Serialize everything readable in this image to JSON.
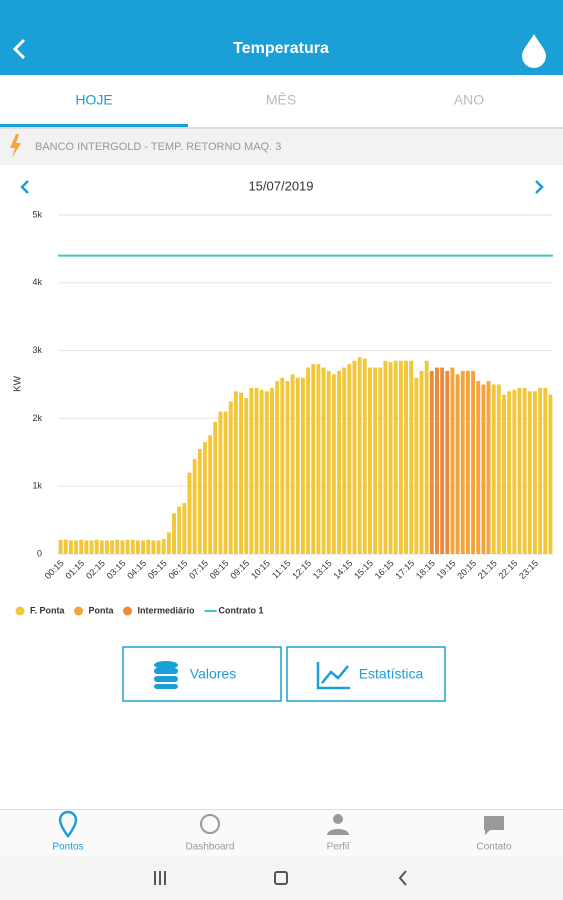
{
  "header": {
    "title": "Temperatura"
  },
  "tabs": [
    "HOJE",
    "MÊS",
    "ANO"
  ],
  "subtitle": "BANCO INTERGOLD - TEMP. RETORNO MAQ. 3",
  "date": "15/07/2019",
  "chart_data": {
    "type": "bar",
    "y_label": "KW",
    "ylim": [
      0,
      5000
    ],
    "yticks": [
      0,
      {
        "value": 1000,
        "label": "1k"
      },
      {
        "value": 2000,
        "label": "2k"
      },
      {
        "value": 3000,
        "label": "3k"
      },
      {
        "value": 4000,
        "label": "4k"
      },
      {
        "value": 5000,
        "label": "5k"
      }
    ],
    "grid": true,
    "categories": [
      "00:15",
      null,
      null,
      null,
      "01:15",
      null,
      null,
      null,
      "02:15",
      null,
      null,
      null,
      "03:15",
      null,
      null,
      null,
      "04:15",
      null,
      null,
      null,
      "05:15",
      null,
      null,
      null,
      "06:15",
      null,
      null,
      null,
      "07:15",
      null,
      null,
      null,
      "08:15",
      null,
      null,
      null,
      "09:15",
      null,
      null,
      null,
      "10:15",
      null,
      null,
      null,
      "11:15",
      null,
      null,
      null,
      "12:15",
      null,
      null,
      null,
      "13:15",
      null,
      null,
      null,
      "14:15",
      null,
      null,
      null,
      "15:15",
      null,
      null,
      null,
      "16:15",
      null,
      null,
      null,
      "17:15",
      null,
      null,
      null,
      "18:15",
      null,
      null,
      null,
      "19:15",
      null,
      null,
      null,
      "20:15",
      null,
      null,
      null,
      "21:15",
      null,
      null,
      null,
      "22:15",
      null,
      null,
      null,
      "23:15",
      null,
      null,
      null
    ],
    "series": [
      {
        "name": "F. Ponta",
        "color": "#f2c83a",
        "values": [
          210,
          210,
          200,
          200,
          210,
          200,
          200,
          210,
          200,
          200,
          200,
          210,
          200,
          210,
          210,
          200,
          200,
          210,
          200,
          200,
          220,
          320,
          600,
          700,
          750,
          1200,
          1400,
          1550,
          1650,
          1750,
          1950,
          2100,
          2100,
          2250,
          2400,
          2380,
          2300,
          2450,
          2450,
          2420,
          2400,
          2450,
          2550,
          2600,
          2550,
          2650,
          2600,
          2600,
          2750,
          2800,
          2800,
          2750,
          2700,
          2650,
          2700,
          2750,
          2800,
          2850,
          2900,
          2880,
          2750,
          2750,
          2750,
          2850,
          2830,
          2850,
          2850,
          2850,
          2850,
          2600,
          2700,
          2850,
          null,
          null,
          null,
          null,
          null,
          null,
          null,
          null,
          null,
          null,
          null,
          null,
          2500,
          2500,
          2350,
          2400,
          2420,
          2450,
          2450,
          2400,
          2400,
          2450,
          2450,
          2350
        ]
      },
      {
        "name": "Ponta",
        "color": "#f5a33a",
        "values": [
          null,
          null,
          null,
          null,
          null,
          null,
          null,
          null,
          null,
          null,
          null,
          null,
          null,
          null,
          null,
          null,
          null,
          null,
          null,
          null,
          null,
          null,
          null,
          null,
          null,
          null,
          null,
          null,
          null,
          null,
          null,
          null,
          null,
          null,
          null,
          null,
          null,
          null,
          null,
          null,
          null,
          null,
          null,
          null,
          null,
          null,
          null,
          null,
          null,
          null,
          null,
          null,
          null,
          null,
          null,
          null,
          null,
          null,
          null,
          null,
          null,
          null,
          null,
          null,
          null,
          null,
          null,
          null,
          null,
          null,
          null,
          null,
          null,
          null,
          null,
          null,
          2750,
          2650,
          2700,
          2700,
          2700,
          2550,
          2500,
          2550,
          null,
          null,
          null,
          null,
          null,
          null,
          null,
          null,
          null,
          null,
          null,
          null
        ]
      },
      {
        "name": "Intermediário",
        "color": "#ea8a3c",
        "values": [
          null,
          null,
          null,
          null,
          null,
          null,
          null,
          null,
          null,
          null,
          null,
          null,
          null,
          null,
          null,
          null,
          null,
          null,
          null,
          null,
          null,
          null,
          null,
          null,
          null,
          null,
          null,
          null,
          null,
          null,
          null,
          null,
          null,
          null,
          null,
          null,
          null,
          null,
          null,
          null,
          null,
          null,
          null,
          null,
          null,
          null,
          null,
          null,
          null,
          null,
          null,
          null,
          null,
          null,
          null,
          null,
          null,
          null,
          null,
          null,
          null,
          null,
          null,
          null,
          null,
          null,
          null,
          null,
          null,
          null,
          null,
          null,
          2700,
          2750,
          2750,
          2700,
          null,
          null,
          null,
          null,
          null,
          null,
          null,
          null,
          null,
          null,
          null,
          null,
          null,
          null,
          null,
          null,
          null,
          null,
          null,
          null
        ]
      }
    ],
    "reference_lines": [
      {
        "name": "Contrato 1",
        "color": "#3cc8c0",
        "value": 4400
      }
    ]
  },
  "buttons": [
    "Valores",
    "Estatística"
  ],
  "nav": [
    "Pontos",
    "Dashboard",
    "Perfil",
    "Contato"
  ]
}
